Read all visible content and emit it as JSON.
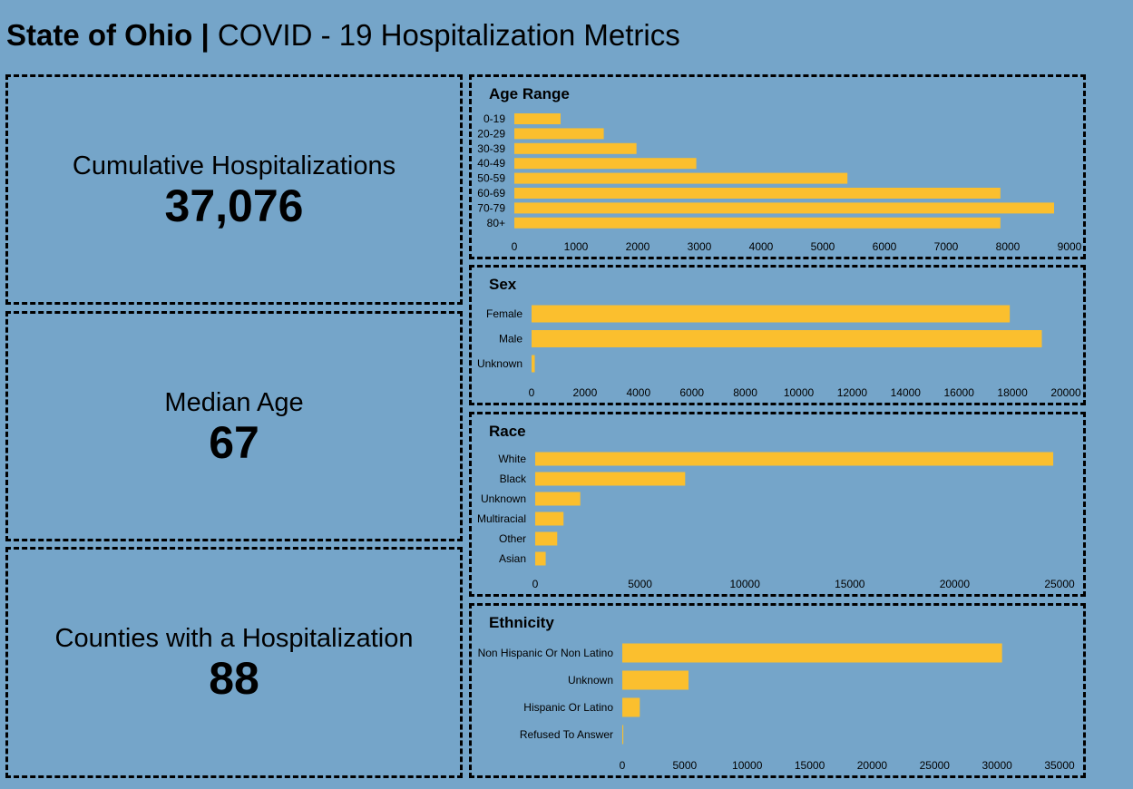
{
  "header": {
    "title_bold": "State of Ohio |",
    "title_rest": " COVID - 19 Hospitalization Metrics"
  },
  "kpis": {
    "cumulative": {
      "label": "Cumulative Hospitalizations",
      "value": "37,076"
    },
    "median_age": {
      "label": "Median Age",
      "value": "67"
    },
    "counties": {
      "label": "Counties with a Hospitalization",
      "value": "88"
    }
  },
  "colors": {
    "bar": "#fbbf2e",
    "background": "#75a5c9"
  },
  "chart_data": [
    {
      "type": "bar",
      "orientation": "horizontal",
      "title": "Age Range",
      "categories": [
        "0-19",
        "20-29",
        "30-39",
        "40-49",
        "50-59",
        "60-69",
        "70-79",
        "80+"
      ],
      "values": [
        750,
        1450,
        1980,
        2950,
        5400,
        7880,
        8750,
        7880
      ],
      "xlim": [
        0,
        9000
      ],
      "xticks": [
        0,
        1000,
        2000,
        3000,
        4000,
        5000,
        6000,
        7000,
        8000,
        9000
      ]
    },
    {
      "type": "bar",
      "orientation": "horizontal",
      "title": "Sex",
      "categories": [
        "Female",
        "Male",
        "Unknown"
      ],
      "values": [
        17900,
        19100,
        120
      ],
      "xlim": [
        0,
        20000
      ],
      "xticks": [
        0,
        2000,
        4000,
        6000,
        8000,
        10000,
        12000,
        14000,
        16000,
        18000,
        20000
      ]
    },
    {
      "type": "bar",
      "orientation": "horizontal",
      "title": "Race",
      "categories": [
        "White",
        "Black",
        "Unknown",
        "Multiracial",
        "Other",
        "Asian"
      ],
      "values": [
        24700,
        7150,
        2150,
        1350,
        1050,
        500
      ],
      "xlim": [
        0,
        25000
      ],
      "xticks": [
        0,
        5000,
        10000,
        15000,
        20000,
        25000
      ]
    },
    {
      "type": "bar",
      "orientation": "horizontal",
      "title": "Ethnicity",
      "categories": [
        "Non Hispanic Or Non Latino",
        "Unknown",
        "Hispanic Or Latino",
        "Refused To Answer"
      ],
      "values": [
        30400,
        5300,
        1400,
        80
      ],
      "xlim": [
        0,
        35000
      ],
      "xticks": [
        0,
        5000,
        10000,
        15000,
        20000,
        25000,
        30000,
        35000
      ]
    }
  ]
}
